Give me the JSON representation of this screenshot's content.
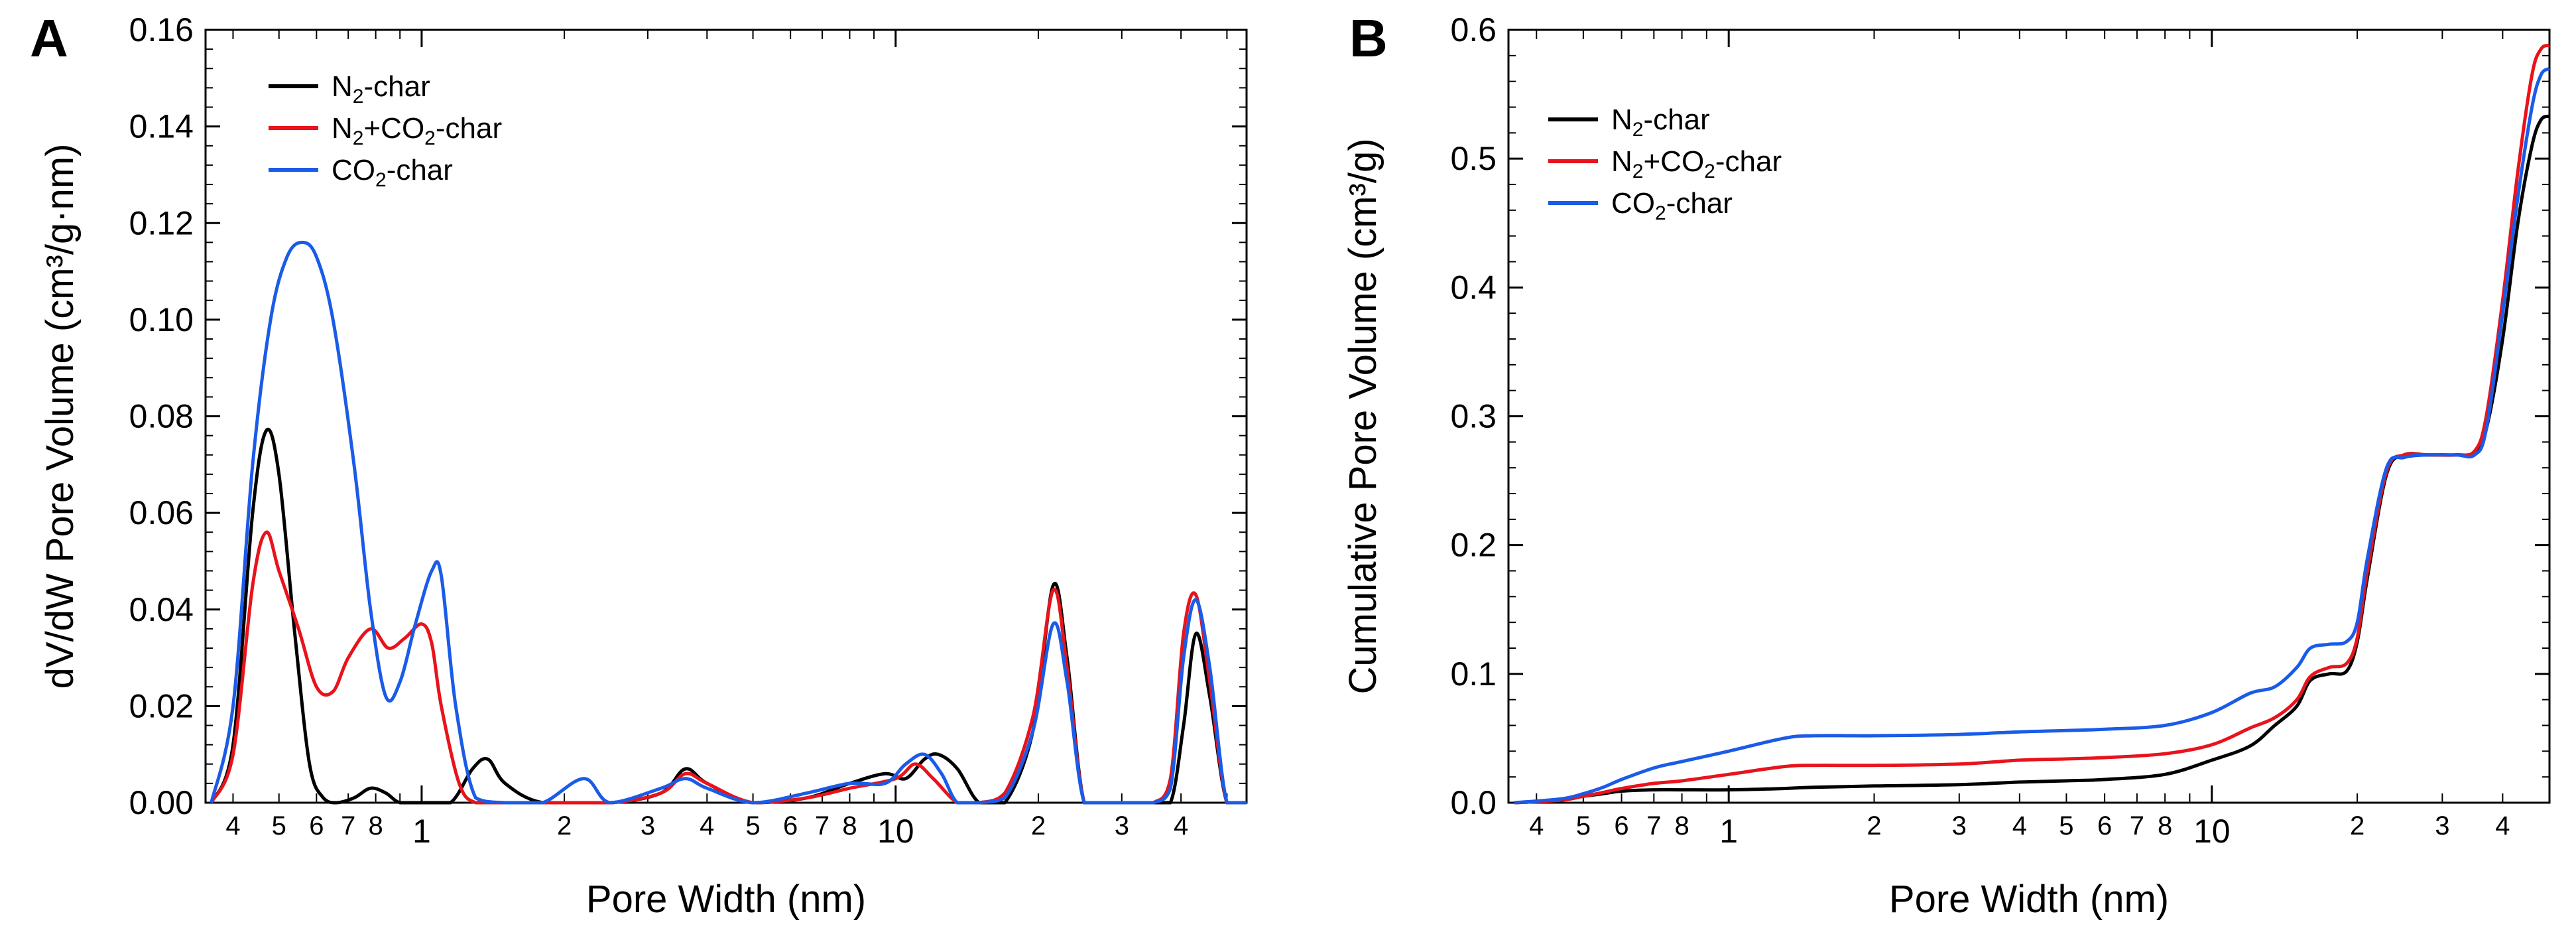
{
  "chart_data": [
    {
      "panel": "A",
      "type": "line",
      "xscale": "log",
      "xlabel": "Pore Width (nm)",
      "ylabel": "dV/dW Pore Volume (cm³/g·nm)",
      "xlim": [
        0.35,
        55
      ],
      "ylim": [
        0,
        0.16
      ],
      "y_ticks": [
        "0.00",
        "0.02",
        "0.04",
        "0.06",
        "0.08",
        "0.10",
        "0.12",
        "0.14",
        "0.16"
      ],
      "x_major_ticks": [
        "1",
        "10"
      ],
      "x_minor_ticks": [
        "4",
        "5",
        "6",
        "7",
        "8",
        "2",
        "3",
        "4",
        "5",
        "6",
        "7",
        "8",
        "2",
        "3",
        "4"
      ],
      "legend_position": "top-left",
      "series": [
        {
          "name_main": "N",
          "name_sub": "2",
          "name_rest": "-char",
          "color": "#000000",
          "x": [
            0.36,
            0.4,
            0.44,
            0.47,
            0.5,
            0.54,
            0.58,
            0.62,
            0.66,
            0.72,
            0.78,
            0.84,
            0.9,
            1.0,
            1.15,
            1.28,
            1.38,
            1.5,
            1.8,
            2.5,
            3.2,
            3.6,
            4.0,
            5.0,
            6.5,
            8.0,
            9.5,
            10.5,
            11.5,
            12.3,
            13.5,
            15.0,
            17.0,
            19.5,
            21.5,
            23.0,
            25.0,
            28.0,
            32.0,
            34.5,
            38.0,
            40.5,
            43.0,
            46.0,
            50.0,
            55.0
          ],
          "values": [
            0.0,
            0.012,
            0.06,
            0.077,
            0.068,
            0.035,
            0.008,
            0.001,
            0.0,
            0.001,
            0.003,
            0.002,
            0.0,
            0.0,
            0.0,
            0.007,
            0.009,
            0.004,
            0.0,
            0.0,
            0.002,
            0.007,
            0.004,
            0.0,
            0.001,
            0.004,
            0.006,
            0.005,
            0.009,
            0.01,
            0.007,
            0.0,
            0.0,
            0.015,
            0.045,
            0.03,
            0.0,
            0.0,
            0.0,
            0.0,
            0.0,
            0.016,
            0.035,
            0.022,
            0.0,
            0.0
          ]
        },
        {
          "name_main": "N",
          "name_sub": "2",
          "name_rest": "+CO",
          "name_sub2": "2",
          "name_rest2": "-char",
          "color": "#e8131b",
          "x": [
            0.36,
            0.4,
            0.44,
            0.47,
            0.5,
            0.55,
            0.6,
            0.65,
            0.7,
            0.78,
            0.85,
            0.92,
            1.0,
            1.05,
            1.1,
            1.2,
            1.3,
            1.5,
            1.8,
            2.5,
            3.2,
            3.6,
            4.0,
            5.0,
            6.5,
            8.0,
            10.0,
            11.0,
            12.0,
            13.5,
            15.0,
            17.0,
            19.5,
            21.5,
            23.0,
            25.0,
            28.0,
            32.0,
            35.0,
            38.0,
            40.5,
            43.0,
            46.0,
            50.0,
            55.0
          ],
          "values": [
            0.0,
            0.01,
            0.045,
            0.056,
            0.048,
            0.036,
            0.024,
            0.023,
            0.03,
            0.036,
            0.032,
            0.034,
            0.037,
            0.033,
            0.02,
            0.004,
            0.0,
            0.0,
            0.0,
            0.0,
            0.002,
            0.006,
            0.004,
            0.0,
            0.001,
            0.003,
            0.005,
            0.008,
            0.005,
            0.0,
            0.0,
            0.002,
            0.018,
            0.044,
            0.028,
            0.0,
            0.0,
            0.0,
            0.0,
            0.005,
            0.035,
            0.043,
            0.025,
            0.0,
            0.0
          ]
        },
        {
          "name_main": "CO",
          "name_sub": "2",
          "name_rest": "-char",
          "color": "#1a5be8",
          "x": [
            0.36,
            0.4,
            0.44,
            0.48,
            0.52,
            0.56,
            0.6,
            0.65,
            0.72,
            0.78,
            0.84,
            0.9,
            0.97,
            1.05,
            1.1,
            1.18,
            1.3,
            1.5,
            1.8,
            2.2,
            2.5,
            3.2,
            3.6,
            4.0,
            5.0,
            6.5,
            8.0,
            9.5,
            10.5,
            11.5,
            12.5,
            13.5,
            15.0,
            17.0,
            19.5,
            21.5,
            23.0,
            25.0,
            28.0,
            32.0,
            35.0,
            38.0,
            40.5,
            43.0,
            46.0,
            50.0,
            55.0
          ],
          "values": [
            0.0,
            0.02,
            0.07,
            0.1,
            0.113,
            0.116,
            0.113,
            0.1,
            0.07,
            0.04,
            0.022,
            0.025,
            0.037,
            0.048,
            0.047,
            0.02,
            0.001,
            0.0,
            0.0,
            0.005,
            0.0,
            0.003,
            0.005,
            0.003,
            0.0,
            0.002,
            0.004,
            0.004,
            0.008,
            0.01,
            0.006,
            0.0,
            0.0,
            0.001,
            0.015,
            0.037,
            0.025,
            0.0,
            0.0,
            0.0,
            0.0,
            0.003,
            0.03,
            0.042,
            0.028,
            0.0,
            0.0
          ]
        }
      ]
    },
    {
      "panel": "B",
      "type": "line",
      "xscale": "log",
      "xlabel": "Pore Width (nm)",
      "ylabel": "Cumulative Pore Volume (cm³/g)",
      "xlim": [
        0.35,
        50
      ],
      "ylim": [
        0,
        0.6
      ],
      "y_ticks": [
        "0.0",
        "0.1",
        "0.2",
        "0.3",
        "0.4",
        "0.5",
        "0.6"
      ],
      "x_major_ticks": [
        "1",
        "10"
      ],
      "x_minor_ticks": [
        "4",
        "5",
        "6",
        "7",
        "8",
        "2",
        "3",
        "4",
        "5",
        "6",
        "7",
        "8",
        "2",
        "3",
        "4"
      ],
      "legend_position": "top-left",
      "series": [
        {
          "name_main": "N",
          "name_sub": "2",
          "name_rest": "-char",
          "color": "#000000",
          "x": [
            0.36,
            0.45,
            0.5,
            0.55,
            0.6,
            0.7,
            0.8,
            1.0,
            1.3,
            1.5,
            2.0,
            3.0,
            4.0,
            5.0,
            6.0,
            8.0,
            10.0,
            12.0,
            13.5,
            15.0,
            16.0,
            17.5,
            19.0,
            20.0,
            21.0,
            23.0,
            25.0,
            28.0,
            32.0,
            35.0,
            37.0,
            40.0,
            43.0,
            46.0,
            48.0,
            50.0
          ],
          "values": [
            0.0,
            0.002,
            0.005,
            0.007,
            0.009,
            0.01,
            0.01,
            0.01,
            0.011,
            0.012,
            0.013,
            0.014,
            0.016,
            0.017,
            0.018,
            0.022,
            0.033,
            0.044,
            0.06,
            0.075,
            0.095,
            0.1,
            0.102,
            0.125,
            0.175,
            0.255,
            0.27,
            0.27,
            0.27,
            0.272,
            0.29,
            0.36,
            0.45,
            0.51,
            0.53,
            0.533
          ]
        },
        {
          "name_main": "N",
          "name_sub": "2",
          "name_rest": "+CO",
          "name_sub2": "2",
          "name_rest2": "-char",
          "color": "#e8131b",
          "x": [
            0.36,
            0.45,
            0.5,
            0.55,
            0.6,
            0.7,
            0.8,
            1.0,
            1.3,
            1.5,
            2.0,
            3.0,
            4.0,
            5.0,
            6.0,
            8.0,
            10.0,
            12.0,
            13.5,
            15.0,
            16.0,
            17.5,
            19.0,
            20.0,
            21.0,
            23.0,
            25.0,
            28.0,
            32.0,
            35.0,
            37.0,
            40.0,
            43.0,
            46.0,
            48.0,
            50.0
          ],
          "values": [
            0.0,
            0.002,
            0.005,
            0.008,
            0.011,
            0.015,
            0.017,
            0.022,
            0.028,
            0.029,
            0.029,
            0.03,
            0.033,
            0.034,
            0.035,
            0.038,
            0.045,
            0.058,
            0.066,
            0.08,
            0.098,
            0.105,
            0.108,
            0.128,
            0.18,
            0.257,
            0.27,
            0.27,
            0.27,
            0.273,
            0.3,
            0.39,
            0.49,
            0.565,
            0.585,
            0.588
          ]
        },
        {
          "name_main": "CO",
          "name_sub": "2",
          "name_rest": "-char",
          "color": "#1a5be8",
          "x": [
            0.36,
            0.45,
            0.5,
            0.55,
            0.6,
            0.7,
            0.8,
            1.0,
            1.3,
            1.5,
            2.0,
            3.0,
            4.0,
            5.0,
            6.0,
            8.0,
            10.0,
            12.0,
            13.5,
            15.0,
            16.0,
            17.5,
            19.0,
            20.0,
            21.0,
            23.0,
            25.0,
            28.0,
            32.0,
            35.0,
            37.0,
            40.0,
            43.0,
            46.0,
            48.0,
            50.0
          ],
          "values": [
            0.0,
            0.003,
            0.007,
            0.012,
            0.018,
            0.027,
            0.032,
            0.04,
            0.05,
            0.052,
            0.052,
            0.053,
            0.055,
            0.056,
            0.057,
            0.06,
            0.07,
            0.085,
            0.09,
            0.105,
            0.12,
            0.123,
            0.125,
            0.14,
            0.19,
            0.26,
            0.268,
            0.27,
            0.27,
            0.27,
            0.29,
            0.38,
            0.47,
            0.54,
            0.565,
            0.57
          ]
        }
      ]
    }
  ]
}
